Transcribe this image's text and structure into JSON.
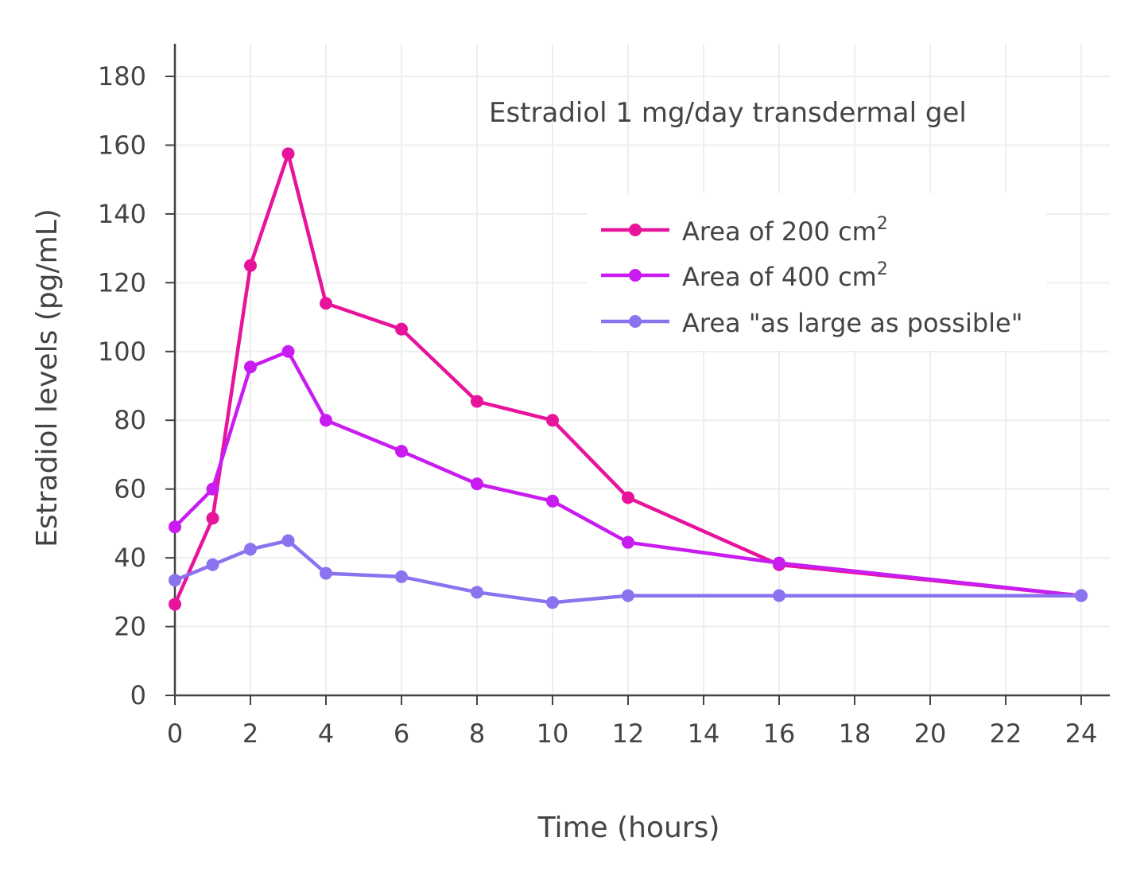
{
  "chart_data": {
    "type": "line",
    "title": "",
    "annotation": "Estradiol 1 mg/day transdermal gel",
    "xlabel": "Time (hours)",
    "ylabel": "Estradiol levels (pg/mL)",
    "xlim": [
      0,
      24
    ],
    "ylim": [
      0,
      180
    ],
    "xticks": [
      0,
      2,
      4,
      6,
      8,
      10,
      12,
      14,
      16,
      18,
      20,
      22,
      24
    ],
    "yticks": [
      0,
      20,
      40,
      60,
      80,
      100,
      120,
      140,
      160,
      180
    ],
    "grid": true,
    "legend_position": "top-right",
    "series": [
      {
        "name": "Area of 200 cm",
        "name_superscript": "2",
        "color": "#e7139b",
        "x": [
          0,
          1,
          2,
          3,
          4,
          6,
          8,
          10,
          12,
          16,
          24
        ],
        "y": [
          26.5,
          51.5,
          125,
          157.5,
          114,
          106.5,
          85.5,
          80,
          57.5,
          38,
          29
        ]
      },
      {
        "name": "Area of 400 cm",
        "name_superscript": "2",
        "color": "#c91cf0",
        "x": [
          0,
          1,
          2,
          3,
          4,
          6,
          8,
          10,
          12,
          16,
          24
        ],
        "y": [
          49,
          60,
          95.5,
          100,
          80,
          71,
          61.5,
          56.5,
          44.5,
          38.5,
          29
        ]
      },
      {
        "name": "Area \"as large as possible\"",
        "name_superscript": "",
        "color": "#8b73ef",
        "x": [
          0,
          1,
          2,
          3,
          4,
          6,
          8,
          10,
          12,
          16,
          24
        ],
        "y": [
          33.5,
          38,
          42.5,
          45,
          35.5,
          34.5,
          30,
          27,
          29,
          29,
          29
        ]
      }
    ]
  }
}
